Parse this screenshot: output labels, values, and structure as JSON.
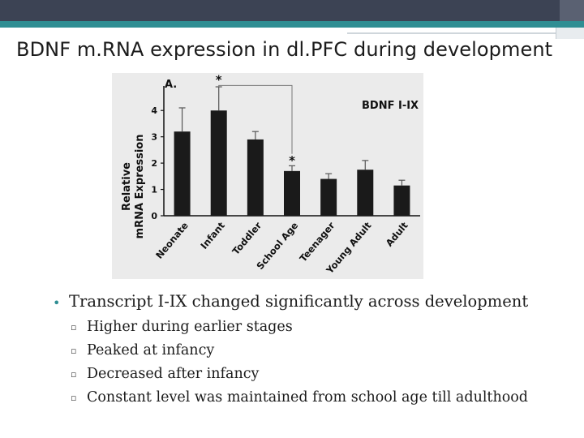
{
  "slide": {
    "title": "BDNF m.RNA expression in dl.PFC during development"
  },
  "chart_data": {
    "type": "bar",
    "panel_label": "A.",
    "annotation": "BDNF I-IX",
    "ylabel_line1": "Relative",
    "ylabel_line2": "mRNA Expression",
    "ylim": [
      0,
      4.5
    ],
    "yticks": [
      "0",
      "1",
      "2",
      "3",
      "4"
    ],
    "categories": [
      "Neonate",
      "Infant",
      "Toddler",
      "School Age",
      "Teenager",
      "Young Adult",
      "Adult"
    ],
    "values": [
      3.2,
      4.0,
      2.9,
      1.7,
      1.4,
      1.75,
      1.15
    ],
    "errors": [
      0.9,
      0.9,
      0.3,
      0.2,
      0.2,
      0.35,
      0.2
    ],
    "significance_marker": "*",
    "significance_pair": [
      "Infant",
      "School Age"
    ],
    "bar_color": "#1a1a1a",
    "background_color": "#ebebeb"
  },
  "bullets": {
    "main": "Transcript I-IX changed significantly across development",
    "items": [
      "Higher during earlier stages",
      "Peaked at infancy",
      "Decreased after infancy",
      "Constant level was maintained from school age till adulthood"
    ],
    "bullet_color": "#2f8e93"
  }
}
